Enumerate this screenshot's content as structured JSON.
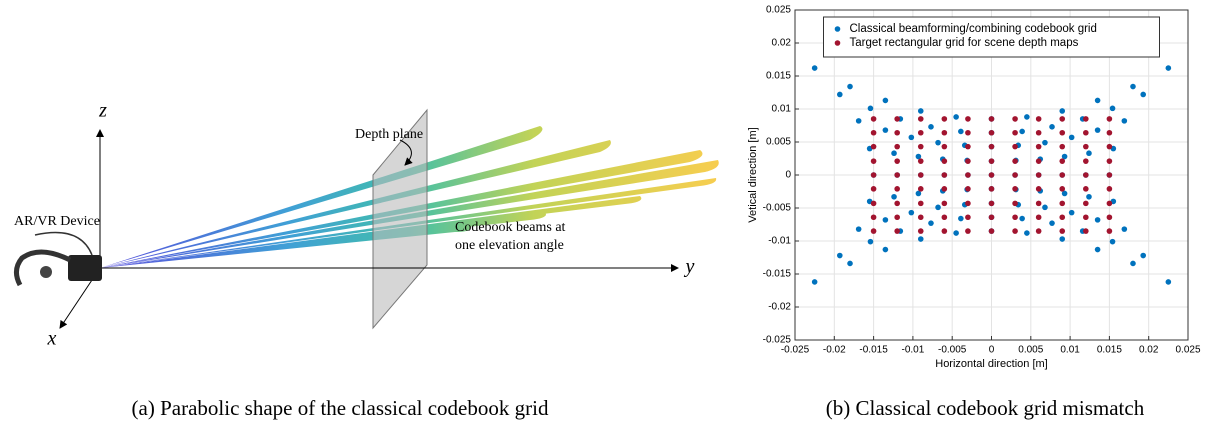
{
  "figure_a": {
    "axis_z": "z",
    "axis_y": "y",
    "axis_x": "x",
    "depth_plane": "Depth plane",
    "device": "AR/VR Device",
    "beams": [
      "Codebook beams at",
      "one elevation angle"
    ],
    "caption": "(a) Parabolic shape of the classical codebook grid"
  },
  "caption_b": "(b) Classical codebook grid mismatch",
  "chart_data": {
    "type": "scatter",
    "xlabel": "Horizontal direction [m]",
    "ylabel": "Vetical direction [m]",
    "xlim": [
      -0.025,
      0.025
    ],
    "ylim": [
      -0.025,
      0.025
    ],
    "xticks": [
      -0.025,
      -0.02,
      -0.015,
      -0.01,
      -0.005,
      0,
      0.005,
      0.01,
      0.015,
      0.02,
      0.025
    ],
    "yticks": [
      -0.025,
      -0.02,
      -0.015,
      -0.01,
      -0.005,
      0,
      0.005,
      0.01,
      0.015,
      0.02,
      0.025
    ],
    "grid": true,
    "legend": "north",
    "series": [
      {
        "name": "Classical beamforming/combining codebook grid",
        "color": "#0072bd",
        "x": [
          -0.0225,
          -0.018,
          -0.0135,
          -0.009,
          -0.0045,
          0,
          0.0045,
          0.009,
          0.0135,
          0.018,
          0.0225,
          -0.0193,
          -0.0154,
          -0.0116,
          -0.0077,
          -0.0039,
          0,
          0.0039,
          0.0077,
          0.0116,
          0.0154,
          0.0193,
          -0.0169,
          -0.0135,
          -0.0102,
          -0.0068,
          -0.0034,
          0,
          0.0034,
          0.0068,
          0.0102,
          0.0135,
          0.0169,
          -0.0155,
          -0.0124,
          -0.0093,
          -0.0062,
          -0.0031,
          0,
          0.0031,
          0.0062,
          0.0093,
          0.0124,
          0.0155,
          -0.015,
          -0.012,
          -0.009,
          -0.006,
          -0.003,
          0,
          0.003,
          0.006,
          0.009,
          0.012,
          0.015,
          -0.0155,
          -0.0124,
          -0.0093,
          -0.0062,
          -0.0031,
          0,
          0.0031,
          0.0062,
          0.0093,
          0.0124,
          0.0155,
          -0.0169,
          -0.0135,
          -0.0102,
          -0.0068,
          -0.0034,
          0,
          0.0034,
          0.0068,
          0.0102,
          0.0135,
          0.0169,
          -0.0193,
          -0.0154,
          -0.0116,
          -0.0077,
          -0.0039,
          0,
          0.0039,
          0.0077,
          0.0116,
          0.0154,
          0.0193,
          -0.0225,
          -0.018,
          -0.0135,
          -0.009,
          -0.0045,
          0,
          0.0045,
          0.009,
          0.0135,
          0.018,
          0.0225
        ],
        "values": [
          -0.0162,
          -0.0134,
          -0.0113,
          -0.0097,
          -0.0088,
          -0.0085,
          -0.0088,
          -0.0097,
          -0.0113,
          -0.0134,
          -0.0162,
          -0.0122,
          -0.0101,
          -0.0085,
          -0.0073,
          -0.0066,
          -0.0064,
          -0.0066,
          -0.0073,
          -0.0085,
          -0.0101,
          -0.0122,
          -0.0082,
          -0.0068,
          -0.0057,
          -0.0049,
          -0.0045,
          -0.0043,
          -0.0045,
          -0.0049,
          -0.0057,
          -0.0068,
          -0.0082,
          -0.004,
          -0.0033,
          -0.0028,
          -0.0024,
          -0.0022,
          -0.0021,
          -0.0022,
          -0.0024,
          -0.0028,
          -0.0033,
          -0.004,
          0,
          0,
          0,
          0,
          0,
          0,
          0,
          0,
          0,
          0,
          0,
          0.004,
          0.0033,
          0.0028,
          0.0024,
          0.0022,
          0.0021,
          0.0022,
          0.0024,
          0.0028,
          0.0033,
          0.004,
          0.0082,
          0.0068,
          0.0057,
          0.0049,
          0.0045,
          0.0043,
          0.0045,
          0.0049,
          0.0057,
          0.0068,
          0.0082,
          0.0122,
          0.0101,
          0.0085,
          0.0073,
          0.0066,
          0.0064,
          0.0066,
          0.0073,
          0.0085,
          0.0101,
          0.0122,
          0.0162,
          0.0134,
          0.0113,
          0.0097,
          0.0088,
          0.0085,
          0.0088,
          0.0097,
          0.0113,
          0.0134,
          0.0162
        ]
      },
      {
        "name": "Target rectangular grid for scene depth maps",
        "color": "#a2142f",
        "x": [
          -0.015,
          -0.012,
          -0.009,
          -0.006,
          -0.003,
          0,
          0.003,
          0.006,
          0.009,
          0.012,
          0.015,
          -0.015,
          -0.012,
          -0.009,
          -0.006,
          -0.003,
          0,
          0.003,
          0.006,
          0.009,
          0.012,
          0.015,
          -0.015,
          -0.012,
          -0.009,
          -0.006,
          -0.003,
          0,
          0.003,
          0.006,
          0.009,
          0.012,
          0.015,
          -0.015,
          -0.012,
          -0.009,
          -0.006,
          -0.003,
          0,
          0.003,
          0.006,
          0.009,
          0.012,
          0.015,
          -0.015,
          -0.012,
          -0.009,
          -0.006,
          -0.003,
          0,
          0.003,
          0.006,
          0.009,
          0.012,
          0.015,
          -0.015,
          -0.012,
          -0.009,
          -0.006,
          -0.003,
          0,
          0.003,
          0.006,
          0.009,
          0.012,
          0.015,
          -0.015,
          -0.012,
          -0.009,
          -0.006,
          -0.003,
          0,
          0.003,
          0.006,
          0.009,
          0.012,
          0.015,
          -0.015,
          -0.012,
          -0.009,
          -0.006,
          -0.003,
          0,
          0.003,
          0.006,
          0.009,
          0.012,
          0.015,
          -0.015,
          -0.012,
          -0.009,
          -0.006,
          -0.003,
          0,
          0.003,
          0.006,
          0.009,
          0.012,
          0.015
        ],
        "values": [
          -0.0085,
          -0.0085,
          -0.0085,
          -0.0085,
          -0.0085,
          -0.0085,
          -0.0085,
          -0.0085,
          -0.0085,
          -0.0085,
          -0.0085,
          -0.0064,
          -0.0064,
          -0.0064,
          -0.0064,
          -0.0064,
          -0.0064,
          -0.0064,
          -0.0064,
          -0.0064,
          -0.0064,
          -0.0064,
          -0.0043,
          -0.0043,
          -0.0043,
          -0.0043,
          -0.0043,
          -0.0043,
          -0.0043,
          -0.0043,
          -0.0043,
          -0.0043,
          -0.0043,
          -0.0021,
          -0.0021,
          -0.0021,
          -0.0021,
          -0.0021,
          -0.0021,
          -0.0021,
          -0.0021,
          -0.0021,
          -0.0021,
          -0.0021,
          0,
          0,
          0,
          0,
          0,
          0,
          0,
          0,
          0,
          0,
          0,
          0.0021,
          0.0021,
          0.0021,
          0.0021,
          0.0021,
          0.0021,
          0.0021,
          0.0021,
          0.0021,
          0.0021,
          0.0021,
          0.0043,
          0.0043,
          0.0043,
          0.0043,
          0.0043,
          0.0043,
          0.0043,
          0.0043,
          0.0043,
          0.0043,
          0.0043,
          0.0064,
          0.0064,
          0.0064,
          0.0064,
          0.0064,
          0.0064,
          0.0064,
          0.0064,
          0.0064,
          0.0064,
          0.0064,
          0.0085,
          0.0085,
          0.0085,
          0.0085,
          0.0085,
          0.0085,
          0.0085,
          0.0085,
          0.0085,
          0.0085,
          0.0085
        ]
      }
    ]
  }
}
